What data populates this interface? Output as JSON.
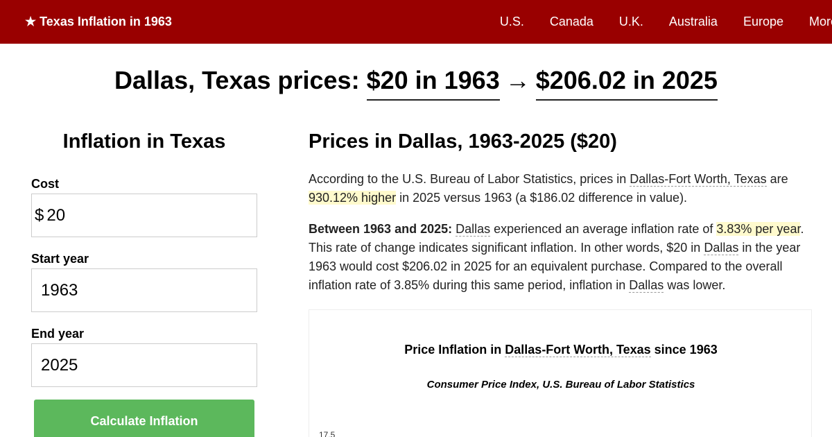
{
  "header": {
    "brand": "★ Texas Inflation in 1963",
    "nav": [
      "U.S.",
      "Canada",
      "U.K.",
      "Australia",
      "Europe",
      "More"
    ]
  },
  "hero": {
    "prefix": "Dallas, Texas prices:",
    "from": "$20 in 1963",
    "arrow": "→",
    "to": "$206.02 in 2025"
  },
  "sidebar": {
    "title": "Inflation in Texas",
    "cost_label": "Cost",
    "currency": "$",
    "cost_value": "20",
    "start_label": "Start year",
    "start_value": "1963",
    "end_label": "End year",
    "end_value": "2025",
    "button": "Calculate Inflation"
  },
  "main": {
    "title": "Prices in Dallas, 1963-2025 ($20)",
    "p1": {
      "t1": "According to the U.S. Bureau of Labor Statistics, prices in ",
      "link": "Dallas-Fort Worth, Texas",
      "t2": " are ",
      "highlight": "930.12% higher",
      "t3": " in 2025 versus 1963 (a $186.02 difference in value)."
    },
    "p2": {
      "bold": "Between 1963 and 2025:",
      "l1": "Dallas",
      "t1": " experienced an average inflation rate of ",
      "highlight": "3.83% per year",
      "t2": ". This rate of change indicates significant inflation. In other words, $20 in ",
      "l2": "Dallas",
      "t3": " in the year 1963 would cost $206.02 in 2025 for an equivalent purchase. Compared to the overall inflation rate of 3.85% during this same period, inflation in ",
      "l3": "Dallas",
      "t4": " was lower."
    }
  },
  "chart": {
    "title_pre": "Price Inflation in ",
    "title_link": "Dallas-Fort Worth, Texas",
    "title_post": " since 1963",
    "subtitle": "Consumer Price Index, U.S. Bureau of Labor Statistics",
    "first_tick": "17.5"
  },
  "colors": {
    "header_bg": "#990000",
    "button_bg": "#5cb85c",
    "highlight": "#fffacd"
  }
}
